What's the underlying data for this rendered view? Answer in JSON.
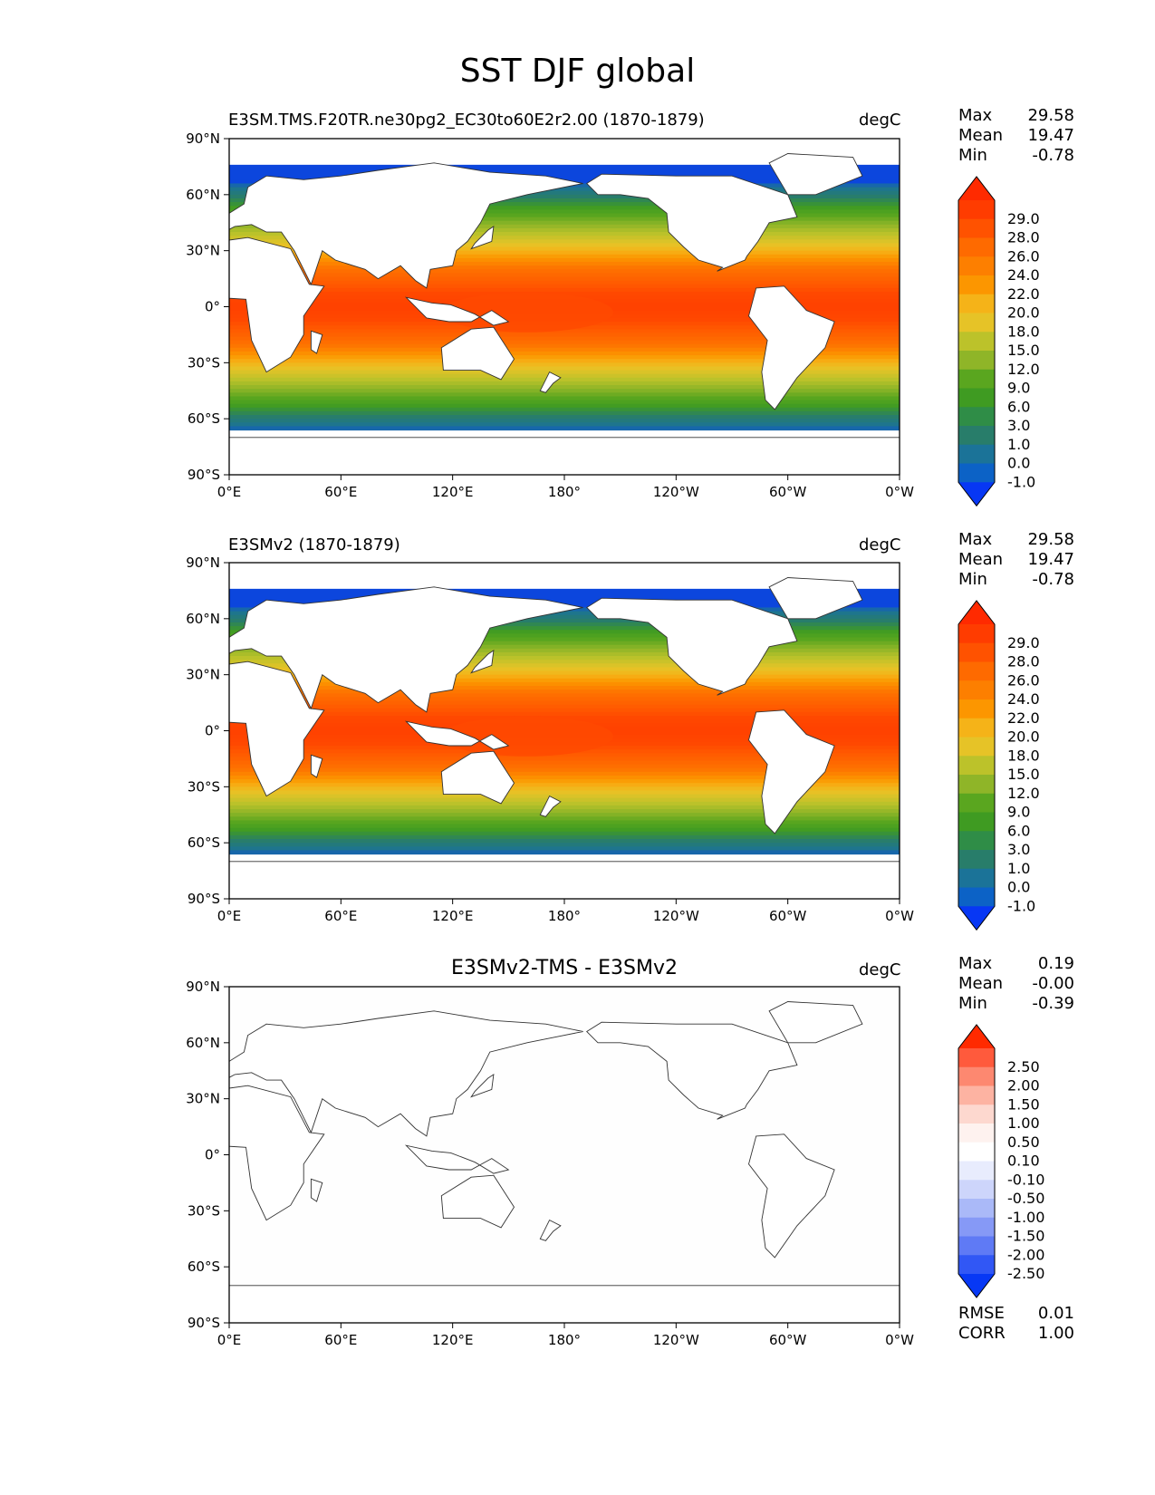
{
  "figure_title": "SST DJF global",
  "chart_data": [
    {
      "type": "heatmap",
      "title": "E3SM.TMS.F20TR.ne30pg2_EC30to60E2r2.00 (1870-1879)",
      "units": "degC",
      "variable": "SST",
      "season": "DJF",
      "x_ticks": [
        "0°E",
        "60°E",
        "120°E",
        "180°",
        "120°W",
        "60°W",
        "0°W"
      ],
      "y_ticks": [
        "90°N",
        "60°N",
        "30°N",
        "0°",
        "30°S",
        "60°S",
        "90°S"
      ],
      "xlim": [
        0,
        360
      ],
      "ylim": [
        -90,
        90
      ],
      "stats": [
        {
          "label": "Max",
          "value": "29.58"
        },
        {
          "label": "Mean",
          "value": "19.47"
        },
        {
          "label": "Min",
          "value": "-0.78"
        }
      ],
      "colorbar": {
        "labels": [
          "29.0",
          "28.0",
          "26.0",
          "24.0",
          "22.0",
          "20.0",
          "18.0",
          "15.0",
          "12.0",
          "9.0",
          "6.0",
          "3.0",
          "1.0",
          "0.0",
          "-1.0"
        ],
        "colors": [
          "#ff2a00",
          "#ff3c00",
          "#ff5200",
          "#fe6a00",
          "#fd7f00",
          "#fc9600",
          "#f5b318",
          "#e6c327",
          "#bcc22a",
          "#8fb528",
          "#5aa61f",
          "#3f9b22",
          "#2f8d47",
          "#287d6a",
          "#1b7398",
          "#0c62c6",
          "#0737f4"
        ]
      }
    },
    {
      "type": "heatmap",
      "title": "E3SMv2 (1870-1879)",
      "units": "degC",
      "variable": "SST",
      "season": "DJF",
      "x_ticks": [
        "0°E",
        "60°E",
        "120°E",
        "180°",
        "120°W",
        "60°W",
        "0°W"
      ],
      "y_ticks": [
        "90°N",
        "60°N",
        "30°N",
        "0°",
        "30°S",
        "60°S",
        "90°S"
      ],
      "xlim": [
        0,
        360
      ],
      "ylim": [
        -90,
        90
      ],
      "stats": [
        {
          "label": "Max",
          "value": "29.58"
        },
        {
          "label": "Mean",
          "value": "19.47"
        },
        {
          "label": "Min",
          "value": "-0.78"
        }
      ],
      "colorbar": {
        "labels": [
          "29.0",
          "28.0",
          "26.0",
          "24.0",
          "22.0",
          "20.0",
          "18.0",
          "15.0",
          "12.0",
          "9.0",
          "6.0",
          "3.0",
          "1.0",
          "0.0",
          "-1.0"
        ],
        "colors": [
          "#ff2a00",
          "#ff3c00",
          "#ff5200",
          "#fe6a00",
          "#fd7f00",
          "#fc9600",
          "#f5b318",
          "#e6c327",
          "#bcc22a",
          "#8fb528",
          "#5aa61f",
          "#3f9b22",
          "#2f8d47",
          "#287d6a",
          "#1b7398",
          "#0c62c6",
          "#0737f4"
        ]
      }
    },
    {
      "type": "heatmap",
      "title": "E3SMv2-TMS - E3SMv2",
      "units": "degC",
      "variable": "SST difference",
      "season": "DJF",
      "x_ticks": [
        "0°E",
        "60°E",
        "120°E",
        "180°",
        "120°W",
        "60°W",
        "0°W"
      ],
      "y_ticks": [
        "90°N",
        "60°N",
        "30°N",
        "0°",
        "30°S",
        "60°S",
        "90°S"
      ],
      "xlim": [
        0,
        360
      ],
      "ylim": [
        -90,
        90
      ],
      "stats": [
        {
          "label": "Max",
          "value": "0.19"
        },
        {
          "label": "Mean",
          "value": "-0.00"
        },
        {
          "label": "Min",
          "value": "-0.39"
        }
      ],
      "extra_stats": [
        {
          "label": "RMSE",
          "value": "0.01"
        },
        {
          "label": "CORR",
          "value": "1.00"
        }
      ],
      "colorbar": {
        "labels": [
          "2.50",
          "2.00",
          "1.50",
          "1.00",
          "0.50",
          "0.10",
          "-0.10",
          "-0.50",
          "-1.00",
          "-1.50",
          "-2.00",
          "-2.50"
        ],
        "colors": [
          "#ff2a00",
          "#ff5a3c",
          "#fd8870",
          "#fdb3a2",
          "#fdd8cf",
          "#fef2ef",
          "#ffffff",
          "#e8ecfd",
          "#cdd5fb",
          "#aab9f8",
          "#8699f6",
          "#5f7af5",
          "#3157f5",
          "#0738f5"
        ]
      }
    }
  ]
}
